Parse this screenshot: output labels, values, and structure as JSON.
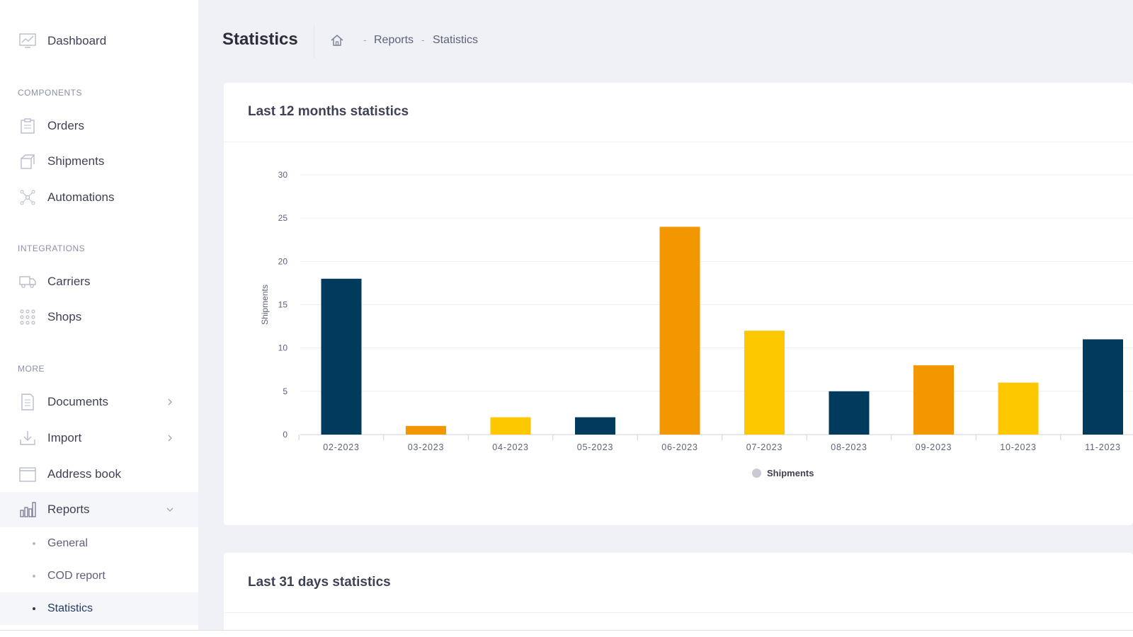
{
  "sidebar": {
    "top": {
      "label": "Dashboard",
      "icon": "chart-line-icon"
    },
    "sections": [
      {
        "title": "COMPONENTS",
        "items": [
          {
            "label": "Orders",
            "icon": "clipboard-icon"
          },
          {
            "label": "Shipments",
            "icon": "package-icon"
          },
          {
            "label": "Automations",
            "icon": "network-icon"
          }
        ]
      },
      {
        "title": "INTEGRATIONS",
        "items": [
          {
            "label": "Carriers",
            "icon": "truck-icon"
          },
          {
            "label": "Shops",
            "icon": "grid-dots-icon"
          }
        ]
      },
      {
        "title": "MORE",
        "items": [
          {
            "label": "Documents",
            "icon": "document-icon"
          },
          {
            "label": "Import",
            "icon": "download-icon"
          },
          {
            "label": "Address book",
            "icon": "book-icon"
          },
          {
            "label": "Reports",
            "icon": "bar-chart-icon"
          }
        ]
      }
    ],
    "report_subitems": [
      "General",
      "COD report",
      "Statistics"
    ],
    "active_subitem": "Statistics"
  },
  "header": {
    "title": "Statistics",
    "breadcrumb": [
      "Reports",
      "Statistics"
    ],
    "separator": "-"
  },
  "cards": {
    "monthly_title": "Last 12 months statistics",
    "daily_title": "Last 31 days statistics"
  },
  "colors": {
    "navy": "#003a5d",
    "orange": "#f39700",
    "yellow": "#fdc800",
    "legend": "#c8cad4"
  },
  "chart_data": {
    "type": "bar",
    "categories": [
      "02-2023",
      "03-2023",
      "04-2023",
      "05-2023",
      "06-2023",
      "07-2023",
      "08-2023",
      "09-2023",
      "10-2023",
      "11-2023"
    ],
    "series": [
      {
        "name": "Shipments",
        "values": [
          18,
          1,
          2,
          2,
          24,
          12,
          5,
          8,
          6,
          11
        ]
      }
    ],
    "bar_colors": [
      "#003a5d",
      "#f39700",
      "#fdc800",
      "#003a5d",
      "#f39700",
      "#fdc800",
      "#003a5d",
      "#f39700",
      "#fdc800",
      "#003a5d"
    ],
    "ylabel": "Shipments",
    "ylim": [
      0,
      30
    ],
    "yticks": [
      0,
      5,
      10,
      15,
      20,
      25,
      30
    ],
    "grid": true,
    "legend": "bottom-center"
  }
}
